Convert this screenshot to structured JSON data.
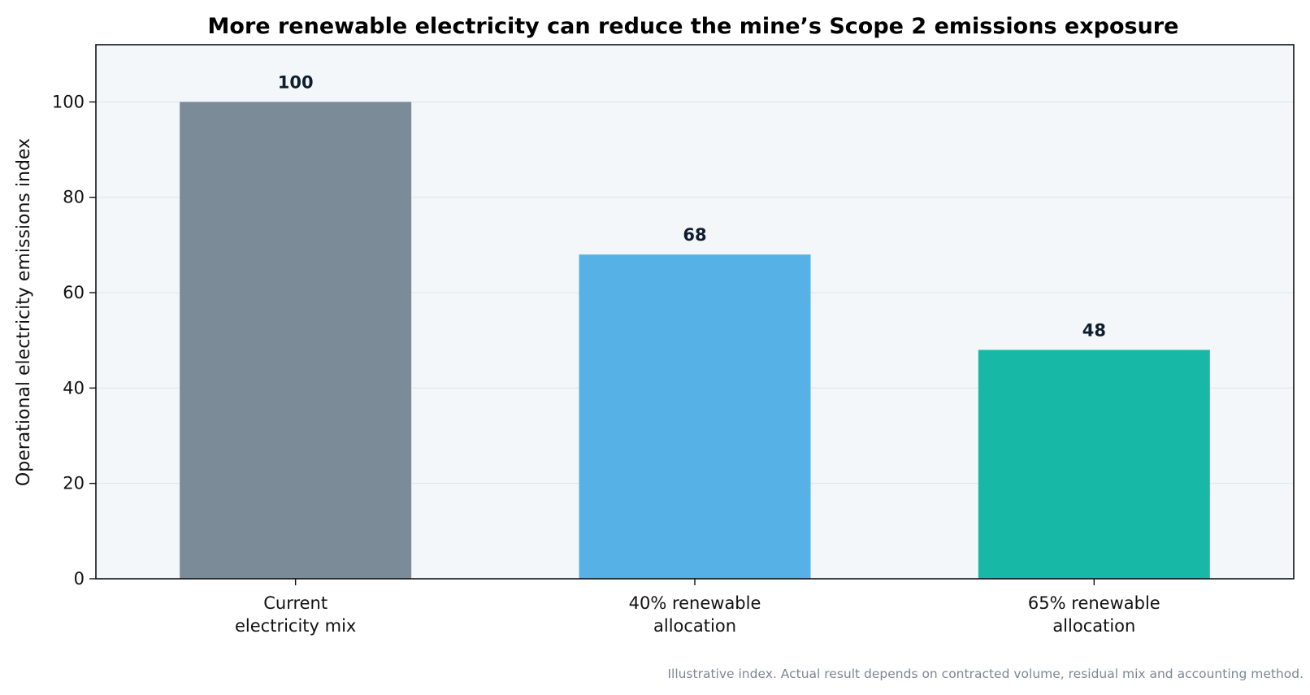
{
  "chart_data": {
    "type": "bar",
    "title": "More renewable electricity can reduce the mine’s Scope 2 emissions exposure",
    "xlabel": "",
    "ylabel": "Operational electricity emissions index",
    "categories": [
      [
        "Current",
        "electricity mix"
      ],
      [
        "40% renewable",
        "allocation"
      ],
      [
        "65% renewable",
        "allocation"
      ]
    ],
    "values": [
      100,
      68,
      48
    ],
    "data_labels": [
      "100",
      "68",
      "48"
    ],
    "bar_colors": [
      "#7b8b98",
      "#56b2e6",
      "#17b9a6"
    ],
    "ylim": [
      0,
      112
    ],
    "yticks": [
      0,
      20,
      40,
      60,
      80,
      100
    ],
    "ytick_labels": [
      "0",
      "20",
      "40",
      "60",
      "80",
      "100"
    ],
    "grid": true,
    "legend": "none",
    "plot_background": "#f3f7fa",
    "footnote": "Illustrative index. Actual result depends on contracted volume, residual mix and accounting method."
  }
}
